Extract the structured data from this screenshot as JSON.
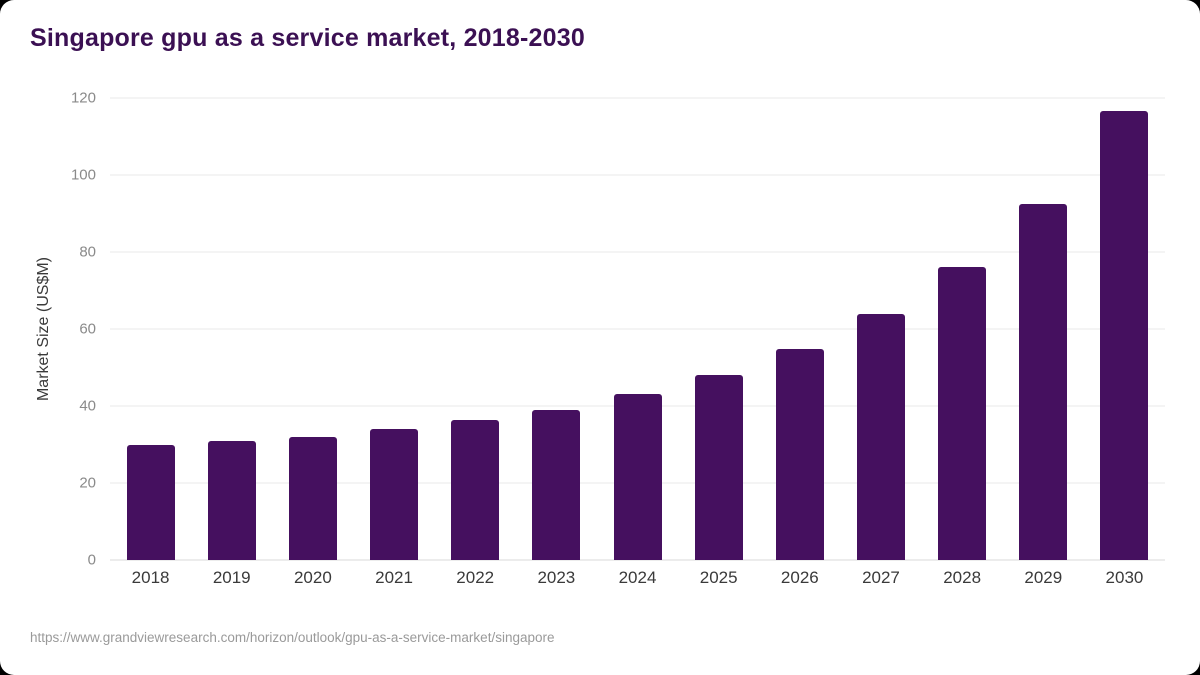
{
  "title": "Singapore gpu as a service market, 2018-2030",
  "source_url": "https://www.grandviewresearch.com/horizon/outlook/gpu-as-a-service-market/singapore",
  "colors": {
    "bar": "#45105f",
    "title": "#3b1053",
    "axis_text": "#8a8a8a",
    "xlabel_text": "#3a3a3a",
    "grid": "#e9e9e9",
    "source_text": "#9a9a9a",
    "background": "#ffffff"
  },
  "chart_data": {
    "type": "bar",
    "title": "Singapore gpu as a service market, 2018-2030",
    "categories": [
      "2018",
      "2019",
      "2020",
      "2021",
      "2022",
      "2023",
      "2024",
      "2025",
      "2026",
      "2027",
      "2028",
      "2029",
      "2030"
    ],
    "values": [
      30,
      30.8,
      32,
      34,
      36.3,
      39,
      43,
      48,
      54.8,
      63.8,
      76,
      92.5,
      116.5
    ],
    "xlabel": "",
    "ylabel": "Market Size (US$M)",
    "ylim": [
      0,
      120
    ],
    "yticks": [
      0,
      20,
      40,
      60,
      80,
      100,
      120
    ],
    "grid": true,
    "legend": false,
    "bar_color": "#45105f"
  }
}
